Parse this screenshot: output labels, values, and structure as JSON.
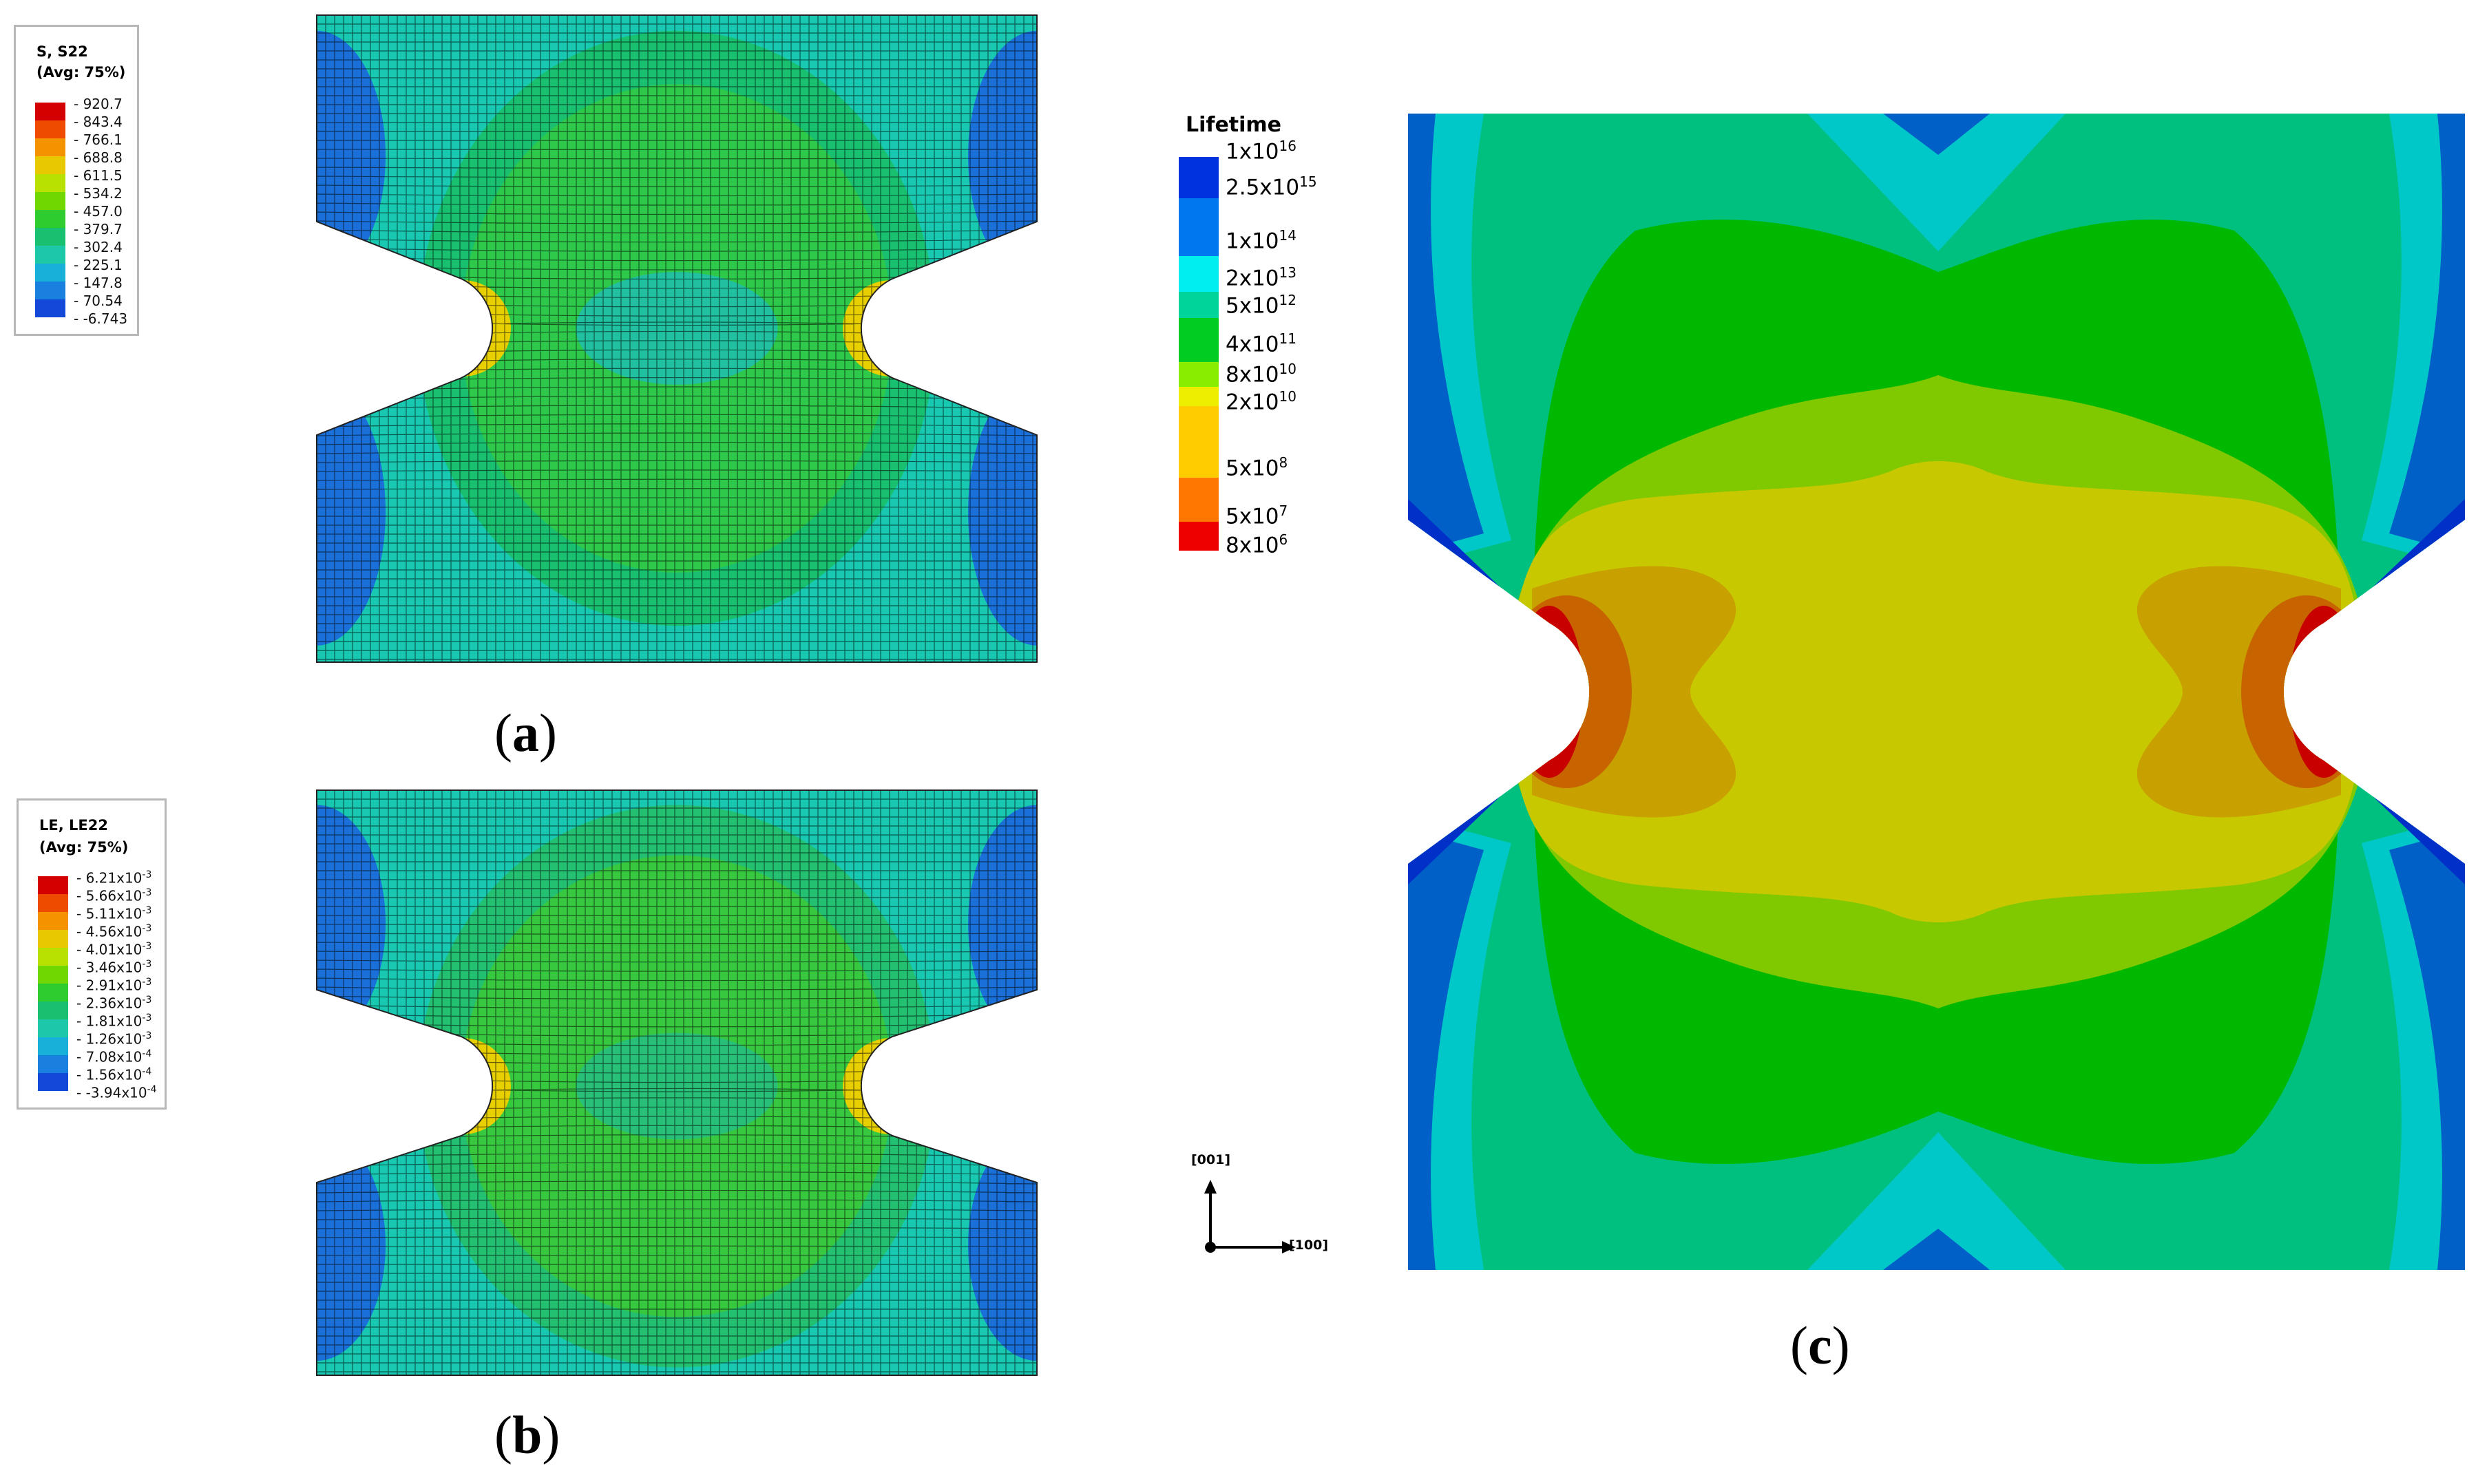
{
  "legend_a": {
    "title_line1": "S, S22",
    "title_line2": "(Avg: 75%)",
    "values": [
      "920.7",
      "843.4",
      "766.1",
      "688.8",
      "611.5",
      "534.2",
      "457.0",
      "379.7",
      "302.4",
      "225.1",
      "147.8",
      "70.54",
      "-6.743"
    ]
  },
  "legend_b": {
    "title_line1": "LE, LE22",
    "title_line2": "(Avg: 75%)",
    "values": [
      {
        "m": "6.21x10",
        "e": "-3"
      },
      {
        "m": "5.66x10",
        "e": "-3"
      },
      {
        "m": "5.11x10",
        "e": "-3"
      },
      {
        "m": "4.56x10",
        "e": "-3"
      },
      {
        "m": "4.01x10",
        "e": "-3"
      },
      {
        "m": "3.46x10",
        "e": "-3"
      },
      {
        "m": "2.91x10",
        "e": "-3"
      },
      {
        "m": "2.36x10",
        "e": "-3"
      },
      {
        "m": "1.81x10",
        "e": "-3"
      },
      {
        "m": "1.26x10",
        "e": "-3"
      },
      {
        "m": "7.08x10",
        "e": "-4"
      },
      {
        "m": "1.56x10",
        "e": "-4"
      },
      {
        "m": "-3.94x10",
        "e": "-4"
      }
    ]
  },
  "legend_colors": [
    "#d40000",
    "#ee4a00",
    "#f59200",
    "#e8c800",
    "#b8e000",
    "#70d800",
    "#2ecc2e",
    "#18c070",
    "#1cc8a8",
    "#18b0d8",
    "#1a80e0",
    "#1448d8",
    "#0c18c8"
  ],
  "lifetime_legend": {
    "title": "Lifetime",
    "labels": [
      {
        "m": "1x10",
        "e": "16"
      },
      {
        "m": "2.5x10",
        "e": "15"
      },
      {
        "m": "1x10",
        "e": "14"
      },
      {
        "m": "2x10",
        "e": "13"
      },
      {
        "m": "5x10",
        "e": "12"
      },
      {
        "m": "4x10",
        "e": "11"
      },
      {
        "m": "8x10",
        "e": "10"
      },
      {
        "m": "2x10",
        "e": "10"
      },
      {
        "m": "5x10",
        "e": "8"
      },
      {
        "m": "5x10",
        "e": "7"
      },
      {
        "m": "8x10",
        "e": "6"
      }
    ],
    "band_colors": [
      "#0033dd",
      "#0077ee",
      "#00eeee",
      "#00d49a",
      "#00cc22",
      "#88ee00",
      "#eeee00",
      "#ffcc00",
      "#ff7700",
      "#ee0000"
    ]
  },
  "contour_colors_c": {
    "dark_blue": "#0030c8",
    "blue": "#0060c8",
    "cyan": "#00c8c8",
    "teal_green": "#00c080",
    "green": "#00b800",
    "yellow_green": "#80c800",
    "olive_yellow": "#c8c800",
    "orange_ochre": "#c8a000",
    "orange": "#c86400",
    "red": "#c80000"
  },
  "axes": {
    "vertical": "[001]",
    "horizontal": "[100]"
  },
  "panel_labels": {
    "a": "a",
    "b": "b",
    "c": "c"
  }
}
